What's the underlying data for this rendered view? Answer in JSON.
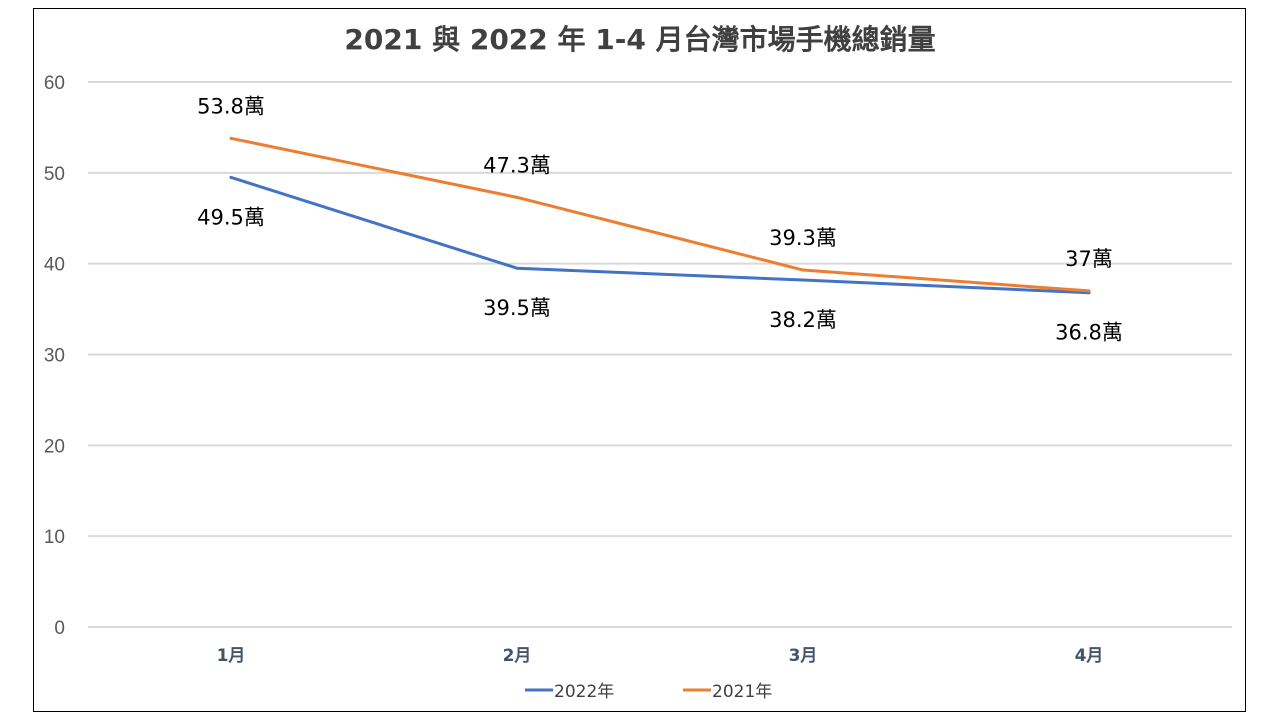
{
  "chart_data": {
    "type": "line",
    "title": "2021 與 2022 年 1-4 月台灣市場手機總銷量",
    "categories": [
      "1月",
      "2月",
      "3月",
      "4月"
    ],
    "xlabel": "",
    "ylabel": "",
    "ylim": [
      0,
      60
    ],
    "yticks": [
      "0",
      "10",
      "20",
      "30",
      "40",
      "50",
      "60"
    ],
    "grid": true,
    "legend_position": "bottom",
    "series": [
      {
        "name": "2022年",
        "color": "#4472c4",
        "values": [
          49.5,
          39.5,
          38.2,
          36.8
        ],
        "labels": [
          "49.5萬",
          "39.5萬",
          "38.2萬",
          "36.8萬"
        ],
        "label_position": "below"
      },
      {
        "name": "2021年",
        "color": "#ed7d31",
        "values": [
          53.8,
          47.3,
          39.3,
          37
        ],
        "labels": [
          "53.8萬",
          "47.3萬",
          "39.3萬",
          "37萬"
        ],
        "label_position": "above"
      }
    ]
  }
}
